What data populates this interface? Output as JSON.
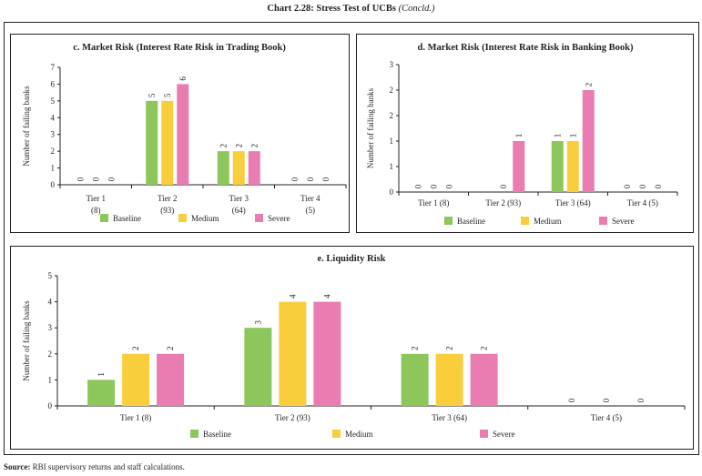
{
  "title": "Chart 2.28: Stress Test of UCBs",
  "title_suffix": "(Concld.)",
  "source_label": "Source:",
  "source_text": "RBI supervisory returns and staff calculations.",
  "colors": {
    "Baseline": "#8dc65a",
    "Medium": "#f9ce3c",
    "Severe": "#e97cb0"
  },
  "chart_data": [
    {
      "id": "c",
      "type": "bar",
      "title": "c. Market Risk (Interest Rate Risk in Trading Book)",
      "ylabel": "Number of failing banks",
      "xlabel": "",
      "ylim": [
        0,
        7
      ],
      "yticks": [
        0,
        1,
        2,
        3,
        4,
        5,
        6,
        7
      ],
      "ytick_labels": [
        "0",
        "1",
        "2",
        "3",
        "4",
        "5",
        "6",
        "7"
      ],
      "categories": [
        [
          "Tier 1",
          "(8)"
        ],
        [
          "Tier 2",
          "(93)"
        ],
        [
          "Tier 3",
          "(64)"
        ],
        [
          "Tier 4",
          "(5)"
        ]
      ],
      "series": [
        {
          "name": "Baseline",
          "values": [
            0,
            5,
            2,
            0
          ]
        },
        {
          "name": "Medium",
          "values": [
            0,
            5,
            2,
            0
          ]
        },
        {
          "name": "Severe",
          "values": [
            0,
            6,
            2,
            0
          ]
        }
      ],
      "legend": "bottom",
      "grid": false
    },
    {
      "id": "d",
      "type": "bar",
      "title": "d. Market Risk (Interest Rate Risk in Banking Book)",
      "ylabel": "Number of failing banks",
      "xlabel": "",
      "ylim": [
        0,
        2.5
      ],
      "yticks": [
        0,
        0.5,
        1,
        1.5,
        2,
        2.5
      ],
      "ytick_labels": [
        "0",
        "1",
        "1",
        "2",
        "2",
        "3"
      ],
      "categories": [
        [
          "Tier 1 (8)"
        ],
        [
          "Tier 2 (93)"
        ],
        [
          "Tier 3 (64)"
        ],
        [
          "Tier 4 (5)"
        ]
      ],
      "series": [
        {
          "name": "Baseline",
          "values": [
            0,
            0,
            1,
            0
          ]
        },
        {
          "name": "Medium",
          "values": [
            0,
            0,
            1,
            0
          ]
        },
        {
          "name": "Severe",
          "values": [
            0,
            1,
            2,
            0
          ]
        }
      ],
      "hidden_labels": {
        "Baseline": [
          false,
          true,
          false,
          false
        ]
      },
      "legend": "bottom",
      "grid": false
    },
    {
      "id": "e",
      "type": "bar",
      "title": "e. Liquidity Risk",
      "ylabel": "Number of failing banks",
      "xlabel": "",
      "ylim": [
        0,
        5
      ],
      "yticks": [
        0,
        1,
        2,
        3,
        4,
        5
      ],
      "ytick_labels": [
        "0",
        "1",
        "2",
        "3",
        "4",
        "5"
      ],
      "categories": [
        [
          "Tier 1 (8)"
        ],
        [
          "Tier 2 (93)"
        ],
        [
          "Tier 3 (64)"
        ],
        [
          "Tier 4 (5)"
        ]
      ],
      "series": [
        {
          "name": "Baseline",
          "values": [
            1,
            3,
            2,
            0
          ]
        },
        {
          "name": "Medium",
          "values": [
            2,
            4,
            2,
            0
          ]
        },
        {
          "name": "Severe",
          "values": [
            2,
            4,
            2,
            0
          ]
        }
      ],
      "legend": "bottom",
      "grid": false
    }
  ]
}
